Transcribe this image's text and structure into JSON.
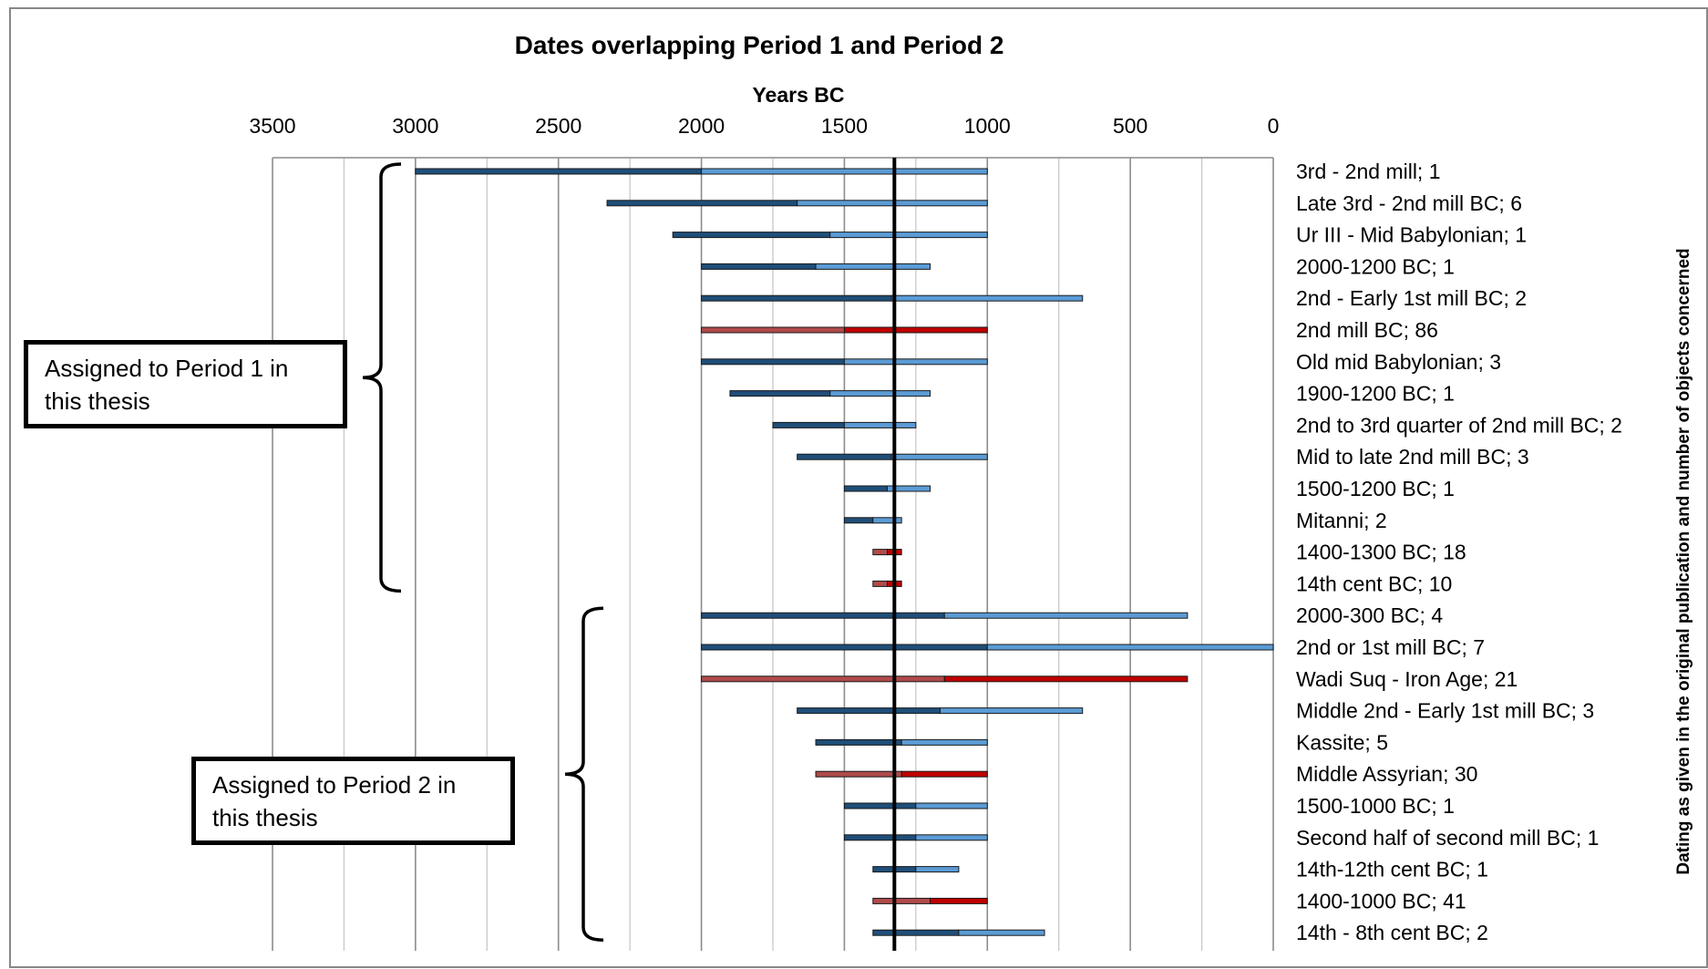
{
  "chart_data": {
    "type": "bar",
    "title": "Dates overlapping Period 1 and Period 2",
    "xlabel": "Years BC",
    "ylabel": "Dating as given in the original publication and number of objects concerned",
    "x_axis": {
      "min": 0,
      "max": 3500,
      "reversed": true,
      "position": "top",
      "ticks": [
        3500,
        3000,
        2500,
        2000,
        1500,
        1000,
        500,
        0
      ]
    },
    "grid": true,
    "reference_line_x": 1325,
    "colors": {
      "segment1_blue": "#1f4e79",
      "segment2_blue": "#5b9bd5",
      "segment1_red": "#b04a4a",
      "segment2_red": "#c00000",
      "reference": "#000000"
    },
    "rows": [
      {
        "label": "3rd - 2nd mill; 1",
        "start": 3000,
        "mid": 2000,
        "end": 1000,
        "color": "blue"
      },
      {
        "label": "Late 3rd - 2nd mill BC; 6",
        "start": 2330,
        "mid": 1665,
        "end": 1000,
        "color": "blue"
      },
      {
        "label": "Ur III - Mid Babylonian; 1",
        "start": 2100,
        "mid": 1550,
        "end": 1000,
        "color": "blue"
      },
      {
        "label": "2000-1200 BC; 1",
        "start": 2000,
        "mid": 1600,
        "end": 1200,
        "color": "blue"
      },
      {
        "label": "2nd - Early 1st mill BC; 2",
        "start": 2000,
        "mid": 1335,
        "end": 667,
        "color": "blue"
      },
      {
        "label": "2nd mill BC; 86",
        "start": 2000,
        "mid": 1500,
        "end": 1000,
        "color": "red"
      },
      {
        "label": "Old mid Babylonian; 3",
        "start": 2000,
        "mid": 1500,
        "end": 1000,
        "color": "blue"
      },
      {
        "label": "1900-1200 BC; 1",
        "start": 1900,
        "mid": 1550,
        "end": 1200,
        "color": "blue"
      },
      {
        "label": "2nd to 3rd quarter of 2nd mill BC; 2",
        "start": 1750,
        "mid": 1500,
        "end": 1250,
        "color": "blue"
      },
      {
        "label": "Mid to late 2nd mill BC; 3",
        "start": 1665,
        "mid": 1335,
        "end": 1000,
        "color": "blue"
      },
      {
        "label": "1500-1200 BC; 1",
        "start": 1500,
        "mid": 1350,
        "end": 1200,
        "color": "blue"
      },
      {
        "label": "Mitanni; 2",
        "start": 1500,
        "mid": 1400,
        "end": 1300,
        "color": "blue"
      },
      {
        "label": "1400-1300 BC; 18",
        "start": 1400,
        "mid": 1350,
        "end": 1300,
        "color": "red"
      },
      {
        "label": "14th cent BC; 10",
        "start": 1400,
        "mid": 1350,
        "end": 1300,
        "color": "red"
      },
      {
        "label": "2000-300 BC; 4",
        "start": 2000,
        "mid": 1150,
        "end": 300,
        "color": "blue"
      },
      {
        "label": "2nd or 1st mill BC; 7",
        "start": 2000,
        "mid": 1000,
        "end": 0,
        "color": "blue"
      },
      {
        "label": "Wadi Suq - Iron Age; 21",
        "start": 2000,
        "mid": 1150,
        "end": 300,
        "color": "red"
      },
      {
        "label": "Middle 2nd - Early 1st mill BC; 3",
        "start": 1665,
        "mid": 1165,
        "end": 667,
        "color": "blue"
      },
      {
        "label": "Kassite; 5",
        "start": 1600,
        "mid": 1300,
        "end": 1000,
        "color": "blue"
      },
      {
        "label": "Middle Assyrian; 30",
        "start": 1600,
        "mid": 1300,
        "end": 1000,
        "color": "red"
      },
      {
        "label": "1500-1000 BC; 1",
        "start": 1500,
        "mid": 1250,
        "end": 1000,
        "color": "blue"
      },
      {
        "label": "Second half of second mill BC; 1",
        "start": 1500,
        "mid": 1250,
        "end": 1000,
        "color": "blue"
      },
      {
        "label": "14th-12th cent BC; 1",
        "start": 1400,
        "mid": 1250,
        "end": 1100,
        "color": "blue"
      },
      {
        "label": "1400-1000 BC; 41",
        "start": 1400,
        "mid": 1200,
        "end": 1000,
        "color": "red"
      },
      {
        "label": "14th - 8th cent BC; 2",
        "start": 1400,
        "mid": 1100,
        "end": 800,
        "color": "blue"
      }
    ],
    "annotations": [
      {
        "text": "Assigned to Period 1 in this thesis",
        "line1": "Assigned to Period 1 in",
        "line2": "this thesis",
        "first_row": 0,
        "last_row": 13
      },
      {
        "text": "Assigned to Period 2 in this thesis",
        "line1": "Assigned to Period 2 in",
        "line2": "this thesis",
        "first_row": 14,
        "last_row": 24
      }
    ]
  }
}
